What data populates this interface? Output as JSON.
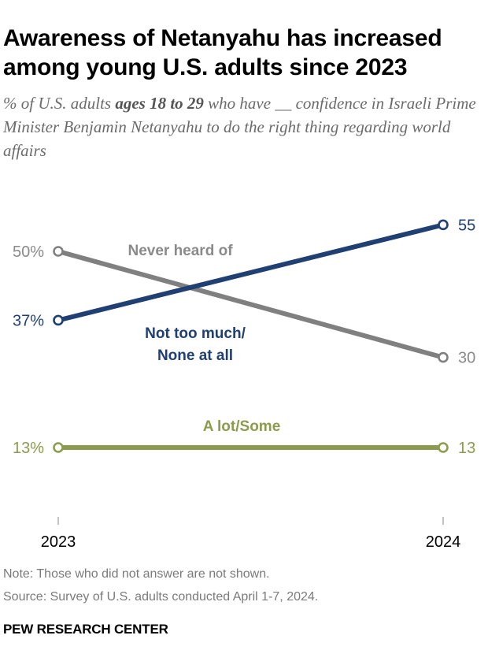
{
  "title": "Awareness of Netanyahu has increased among young U.S. adults since 2023",
  "subtitle": {
    "before": "% of U.S. adults ",
    "bold": "ages 18 to 29",
    "after": " who have __ confidence in Israeli Prime Minister Benjamin Netanyahu to do the right thing regarding world affairs"
  },
  "chart_data": {
    "type": "line",
    "x": [
      "2023",
      "2024"
    ],
    "ylim": [
      0,
      70
    ],
    "grid": false,
    "legend": "inline labels",
    "series": [
      {
        "name": "Never heard of",
        "values": [
          50,
          30
        ],
        "labels": [
          "50%",
          "30"
        ],
        "color": "#808080",
        "label_color": "#8a8a8a",
        "label_lines": [
          "Never heard of"
        ]
      },
      {
        "name": "Not too much/ None at all",
        "values": [
          37,
          55
        ],
        "labels": [
          "37%",
          "55"
        ],
        "color": "#203f73",
        "label_color": "#203f73",
        "label_lines": [
          "Not too much/",
          "None at all"
        ]
      },
      {
        "name": "A lot/Some",
        "values": [
          13,
          13
        ],
        "labels": [
          "13%",
          "13"
        ],
        "color": "#8c9b4d",
        "label_color": "#8c9b4d",
        "label_lines": [
          "A lot/Some"
        ]
      }
    ]
  },
  "note": "Note: Those who did not answer are not shown.",
  "source": "Source: Survey of U.S. adults conducted April 1-7, 2024.",
  "brand": "PEW RESEARCH CENTER"
}
